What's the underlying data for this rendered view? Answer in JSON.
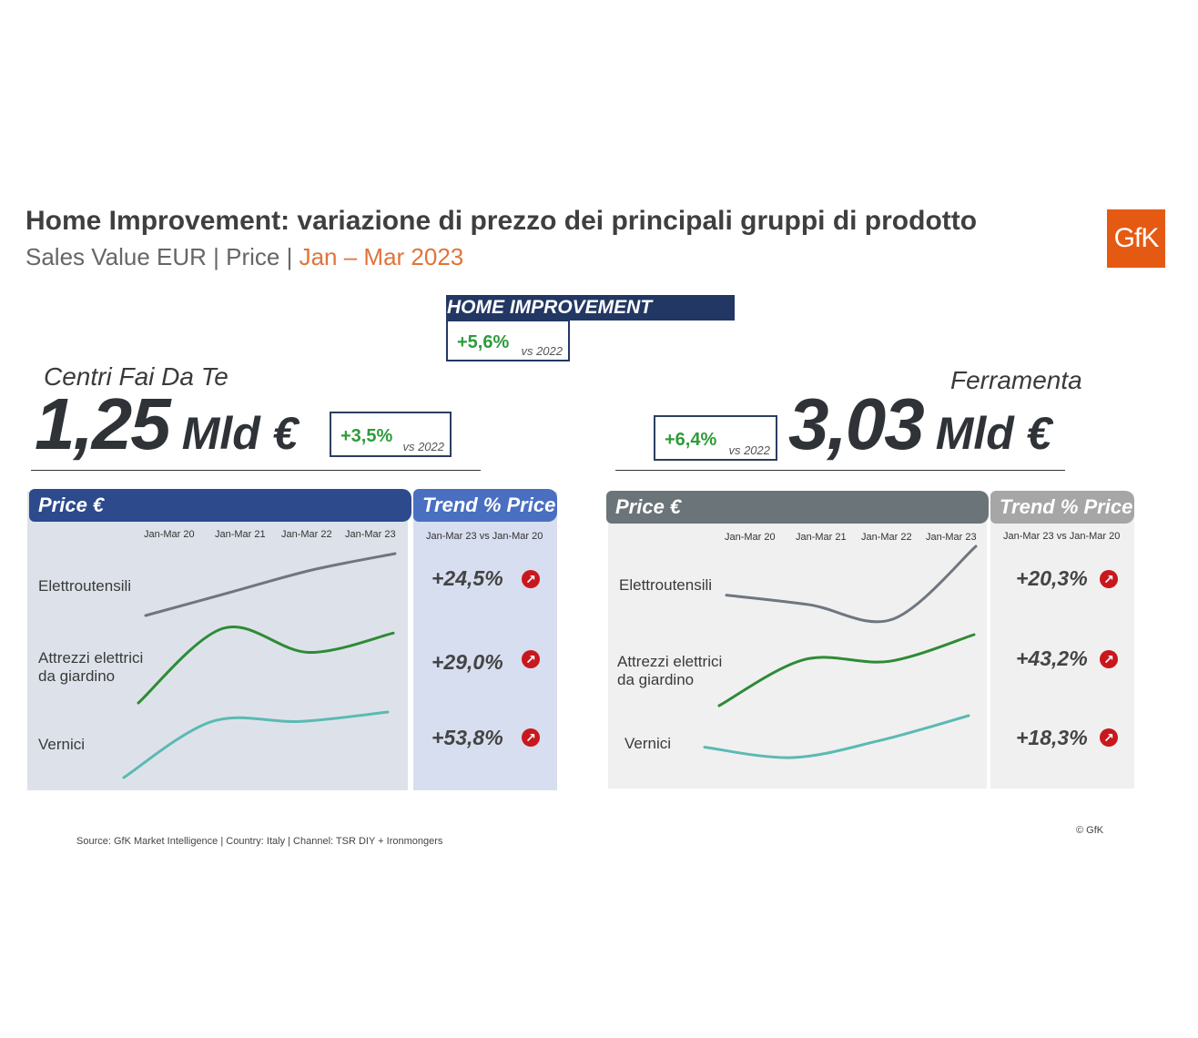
{
  "title": "Home Improvement: variazione di prezzo dei principali gruppi di prodotto",
  "subtitle": {
    "prefix": "Sales Value EUR | Price | ",
    "period": "Jan – Mar 2023"
  },
  "logo_text": "GfK",
  "total": {
    "label": "HOME IMPROVEMENT",
    "growth": "+5,6%",
    "vs": "vs 2022"
  },
  "left": {
    "name": "Centri Fai Da Te",
    "value": "1,25",
    "unit": "Mld €",
    "growth": "+3,5%",
    "vs": "vs 2022",
    "price_header": "Price €",
    "trend_header": "Trend % Price",
    "trend_period": "Jan-Mar 23 vs Jan-Mar 20",
    "periods": [
      "Jan-Mar 20",
      "Jan-Mar 21",
      "Jan-Mar 22",
      "Jan-Mar 23"
    ],
    "rows": [
      {
        "label": "Elettroutensili",
        "trend": "+24,5%"
      },
      {
        "label": "Attrezzi elettrici da giardino",
        "trend": "+29,0%"
      },
      {
        "label": "Vernici",
        "trend": "+53,8%"
      }
    ]
  },
  "right": {
    "name": "Ferramenta",
    "value": "3,03",
    "unit": "Mld €",
    "growth": "+6,4%",
    "vs": "vs 2022",
    "price_header": "Price €",
    "trend_header": "Trend % Price",
    "trend_period": "Jan-Mar 23 vs Jan-Mar 20",
    "periods": [
      "Jan-Mar 20",
      "Jan-Mar 21",
      "Jan-Mar 22",
      "Jan-Mar 23"
    ],
    "rows": [
      {
        "label": "Elettroutensili",
        "trend": "+20,3%"
      },
      {
        "label": "Attrezzi elettrici da giardino",
        "trend": "+43,2%"
      },
      {
        "label": "Vernici",
        "trend": "+18,3%"
      }
    ]
  },
  "colors": {
    "left_header": "#2d4a8c",
    "left_trend_header": "#4a6fc1",
    "left_panel": "#dde2ea",
    "left_trend_panel": "#d7deef",
    "right_header": "#6b7479",
    "right_trend_header": "#a6a6a6",
    "right_panel": "#f0f0f0",
    "elettroutensili": "#6e7680",
    "attrezzi": "#2e8b35",
    "vernici": "#5bbab2",
    "arrow": "#c8181e"
  },
  "chart_data": [
    {
      "type": "line",
      "title": "Centri Fai Da Te",
      "categories": [
        "Jan-Mar 20",
        "Jan-Mar 21",
        "Jan-Mar 22",
        "Jan-Mar 23"
      ],
      "series": [
        {
          "name": "Elettroutensili",
          "values": [
            100,
            109,
            118,
            124.5
          ]
        },
        {
          "name": "Attrezzi elettrici da giardino",
          "values": [
            100,
            131,
            121,
            129.0
          ]
        },
        {
          "name": "Vernici",
          "values": [
            100,
            146,
            146,
            153.8
          ]
        }
      ],
      "trend": [
        "+24,5%",
        "+29,0%",
        "+53,8%"
      ]
    },
    {
      "type": "line",
      "title": "Ferramenta",
      "categories": [
        "Jan-Mar 20",
        "Jan-Mar 21",
        "Jan-Mar 22",
        "Jan-Mar 23"
      ],
      "series": [
        {
          "name": "Elettroutensili",
          "values": [
            100,
            96,
            90,
            120.3
          ]
        },
        {
          "name": "Attrezzi elettrici da giardino",
          "values": [
            100,
            128,
            127,
            143.2
          ]
        },
        {
          "name": "Vernici",
          "values": [
            100,
            94,
            104,
            118.3
          ]
        }
      ],
      "trend": [
        "+20,3%",
        "+43,2%",
        "+18,3%"
      ]
    }
  ],
  "source": "Source: GfK Market Intelligence | Country: Italy | Channel: TSR DIY + Ironmongers",
  "copyright": "© GfK"
}
